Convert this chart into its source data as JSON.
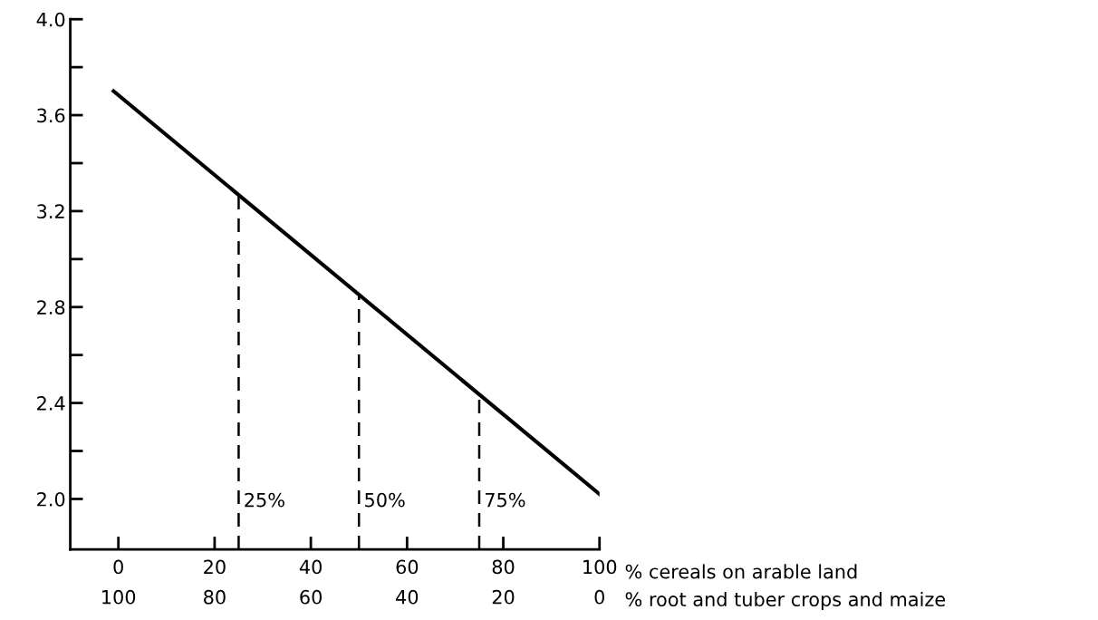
{
  "chart_data": {
    "type": "line",
    "x": [
      -1,
      100
    ],
    "series": [
      {
        "color": "#000000",
        "values": [
          3.7,
          2.02
        ]
      }
    ],
    "xlim": [
      -10,
      100
    ],
    "ylim": [
      1.79,
      4.0
    ],
    "xticks": [
      0,
      20,
      40,
      60,
      80,
      100
    ],
    "x2lim": [
      110,
      0
    ],
    "x2ticks": [
      100,
      80,
      60,
      40,
      20,
      0
    ],
    "yticks": [
      {
        "value": 2.0,
        "label": "2.0"
      },
      {
        "value": 2.2,
        "label": null
      },
      {
        "value": 2.4,
        "label": "2.4"
      },
      {
        "value": 2.6,
        "label": null
      },
      {
        "value": 2.8,
        "label": "2.8"
      },
      {
        "value": 3.0,
        "label": null
      },
      {
        "value": 3.2,
        "label": "3.2"
      },
      {
        "value": 3.4,
        "label": null
      },
      {
        "value": 3.6,
        "label": "3.6"
      },
      {
        "value": 3.8,
        "label": null
      },
      {
        "value": 4.0,
        "label": "4.0"
      }
    ],
    "ref_lines": [
      {
        "axis": "x",
        "value": 25,
        "label": "25%",
        "color": "#000000",
        "line_style": "dashed"
      },
      {
        "axis": "x",
        "value": 50,
        "label": "50%",
        "color": "#000000",
        "line_style": "dashed"
      },
      {
        "axis": "x",
        "value": 75,
        "label": "75%",
        "color": "#000000",
        "line_style": "dashed"
      }
    ],
    "annotations": [
      "% cereals on arable land",
      "% root and tuber crops and maize"
    ],
    "grid": false,
    "legend": false,
    "marker": "none",
    "line_style": "solid"
  }
}
